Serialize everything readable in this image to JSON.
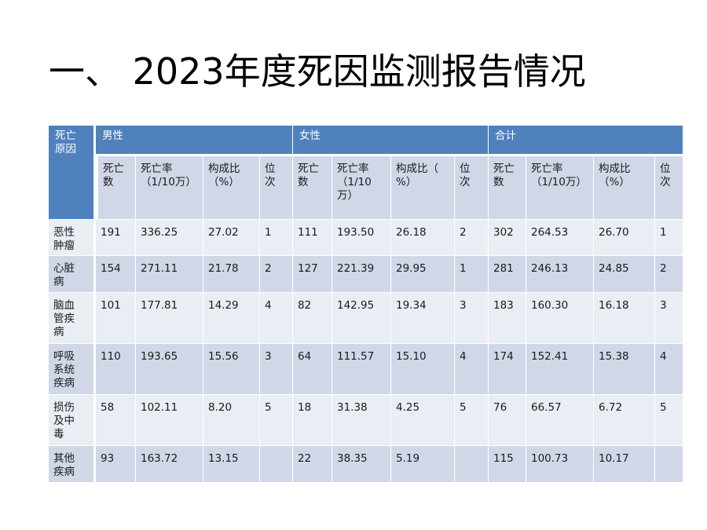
{
  "title": "一、 2023年度死因监测报告情况",
  "table": {
    "corner_header": "死亡\n原因",
    "groups": [
      "男性",
      "女性",
      "合计"
    ],
    "subheaders": {
      "count": "死亡\n数",
      "rate": "死亡率\n（1/10万）",
      "rate_female": "死亡率\n（1/10\n万）",
      "share": "构成比\n（%）",
      "share_female": "构成比（\n%）",
      "rank": "位\n次"
    },
    "rows": [
      {
        "cause": "恶性\n肿瘤",
        "male": {
          "count": "191",
          "rate": "336.25",
          "share": "27.02",
          "rank": "1"
        },
        "female": {
          "count": "111",
          "rate": "193.50",
          "share": "26.18",
          "rank": "2"
        },
        "total": {
          "count": "302",
          "rate": "264.53",
          "share": "26.70",
          "rank": "1"
        }
      },
      {
        "cause": "心脏\n病",
        "male": {
          "count": "154",
          "rate": "271.11",
          "share": "21.78",
          "rank": "2"
        },
        "female": {
          "count": "127",
          "rate": "221.39",
          "share": "29.95",
          "rank": "1"
        },
        "total": {
          "count": "281",
          "rate": "246.13",
          "share": "24.85",
          "rank": "2"
        }
      },
      {
        "cause": "脑血\n管疾\n病",
        "male": {
          "count": "101",
          "rate": "177.81",
          "share": "14.29",
          "rank": "4"
        },
        "female": {
          "count": "82",
          "rate": "142.95",
          "share": "19.34",
          "rank": "3"
        },
        "total": {
          "count": "183",
          "rate": "160.30",
          "share": "16.18",
          "rank": "3"
        }
      },
      {
        "cause": "呼吸\n系统\n疾病",
        "male": {
          "count": "110",
          "rate": "193.65",
          "share": "15.56",
          "rank": "3"
        },
        "female": {
          "count": "64",
          "rate": "111.57",
          "share": "15.10",
          "rank": "4"
        },
        "total": {
          "count": "174",
          "rate": "152.41",
          "share": "15.38",
          "rank": "4"
        }
      },
      {
        "cause": "损伤\n及中\n毒",
        "male": {
          "count": "58",
          "rate": "102.11",
          "share": "8.20",
          "rank": "5"
        },
        "female": {
          "count": "18",
          "rate": "31.38",
          "share": "4.25",
          "rank": "5"
        },
        "total": {
          "count": "76",
          "rate": "66.57",
          "share": "6.72",
          "rank": "5"
        }
      },
      {
        "cause": "其他\n疾病",
        "male": {
          "count": "93",
          "rate": "163.72",
          "share": "13.15",
          "rank": ""
        },
        "female": {
          "count": "22",
          "rate": "38.35",
          "share": "5.19",
          "rank": ""
        },
        "total": {
          "count": "115",
          "rate": "100.73",
          "share": "10.17",
          "rank": ""
        }
      }
    ]
  }
}
